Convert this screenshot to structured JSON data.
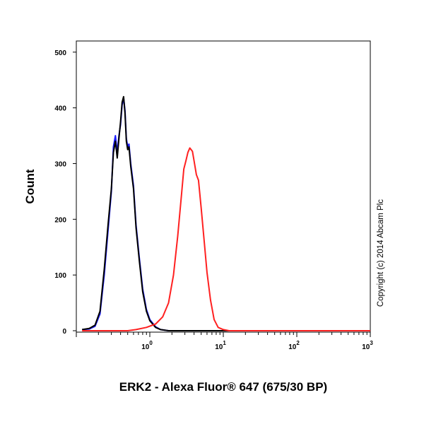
{
  "chart_data": {
    "type": "line",
    "xlabel": "ERK2 - Alexa Fluor® 647 (675/30 BP)",
    "ylabel": "Count",
    "x_scale": "log",
    "xlim": [
      0.1,
      1000
    ],
    "ylim": [
      0,
      520
    ],
    "x_tick_labels": [
      {
        "value": 1,
        "base": "10",
        "exp": "0"
      },
      {
        "value": 10,
        "base": "10",
        "exp": "1"
      },
      {
        "value": 100,
        "base": "10",
        "exp": "2"
      },
      {
        "value": 1000,
        "base": "10",
        "exp": "3"
      }
    ],
    "y_ticks": [
      0,
      100,
      200,
      300,
      400,
      500
    ],
    "y_tick_labels": [
      "0",
      "100",
      "200",
      "300",
      "400",
      "500"
    ],
    "copyright": "Copyright (c) 2014 Abcam Plc",
    "series": [
      {
        "color": "#1a1aff",
        "points": [
          [
            0.12,
            2
          ],
          [
            0.15,
            3
          ],
          [
            0.18,
            8
          ],
          [
            0.21,
            30
          ],
          [
            0.24,
            100
          ],
          [
            0.27,
            180
          ],
          [
            0.3,
            250
          ],
          [
            0.32,
            330
          ],
          [
            0.34,
            350
          ],
          [
            0.36,
            320
          ],
          [
            0.38,
            350
          ],
          [
            0.4,
            370
          ],
          [
            0.42,
            405
          ],
          [
            0.44,
            418
          ],
          [
            0.46,
            395
          ],
          [
            0.48,
            345
          ],
          [
            0.5,
            330
          ],
          [
            0.52,
            335
          ],
          [
            0.55,
            300
          ],
          [
            0.6,
            260
          ],
          [
            0.65,
            190
          ],
          [
            0.72,
            130
          ],
          [
            0.8,
            75
          ],
          [
            0.9,
            38
          ],
          [
            1.0,
            20
          ],
          [
            1.2,
            7
          ],
          [
            1.4,
            2
          ],
          [
            1.8,
            0
          ],
          [
            1000,
            0
          ]
        ]
      },
      {
        "color": "#000000",
        "points": [
          [
            0.12,
            2
          ],
          [
            0.15,
            4
          ],
          [
            0.18,
            10
          ],
          [
            0.21,
            35
          ],
          [
            0.24,
            110
          ],
          [
            0.27,
            190
          ],
          [
            0.3,
            255
          ],
          [
            0.32,
            320
          ],
          [
            0.34,
            340
          ],
          [
            0.36,
            310
          ],
          [
            0.38,
            345
          ],
          [
            0.4,
            375
          ],
          [
            0.42,
            410
          ],
          [
            0.44,
            420
          ],
          [
            0.46,
            390
          ],
          [
            0.48,
            340
          ],
          [
            0.5,
            325
          ],
          [
            0.52,
            330
          ],
          [
            0.55,
            295
          ],
          [
            0.6,
            255
          ],
          [
            0.65,
            185
          ],
          [
            0.72,
            125
          ],
          [
            0.8,
            70
          ],
          [
            0.9,
            35
          ],
          [
            1.0,
            18
          ],
          [
            1.2,
            6
          ],
          [
            1.4,
            2
          ],
          [
            1.8,
            0
          ],
          [
            1000,
            0
          ]
        ]
      },
      {
        "color": "#ff2020",
        "points": [
          [
            0.12,
            0
          ],
          [
            0.5,
            0
          ],
          [
            0.65,
            2
          ],
          [
            0.9,
            6
          ],
          [
            1.2,
            12
          ],
          [
            1.5,
            25
          ],
          [
            1.8,
            50
          ],
          [
            2.1,
            100
          ],
          [
            2.4,
            170
          ],
          [
            2.7,
            245
          ],
          [
            2.9,
            290
          ],
          [
            3.1,
            305
          ],
          [
            3.3,
            320
          ],
          [
            3.5,
            328
          ],
          [
            3.8,
            322
          ],
          [
            4.0,
            305
          ],
          [
            4.3,
            280
          ],
          [
            4.6,
            270
          ],
          [
            5.0,
            220
          ],
          [
            5.5,
            160
          ],
          [
            6.0,
            105
          ],
          [
            6.7,
            55
          ],
          [
            7.5,
            20
          ],
          [
            8.5,
            6
          ],
          [
            10,
            2
          ],
          [
            12,
            0
          ],
          [
            1000,
            0
          ]
        ]
      }
    ]
  }
}
